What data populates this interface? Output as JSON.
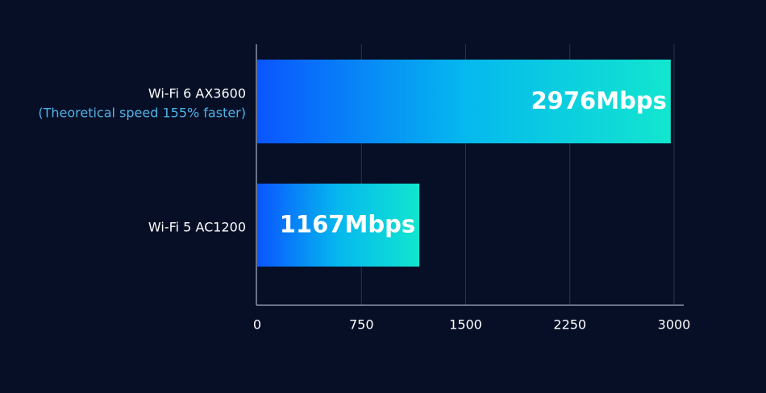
{
  "chart_data": {
    "type": "bar",
    "orientation": "horizontal",
    "categories": [
      "Wi-Fi 6 AX3600",
      "Wi-Fi 5 AC1200"
    ],
    "annotation": "(Theoretical speed 155% faster)",
    "values": [
      2976,
      1167
    ],
    "value_labels": [
      "2976Mbps",
      "1167Mbps"
    ],
    "colors": [
      "#0a55ff",
      "#05b8ee",
      "#12e6cf"
    ],
    "xlim": [
      0,
      3000
    ],
    "xticks": [
      0,
      750,
      1500,
      2250,
      3000
    ],
    "grid": true
  }
}
